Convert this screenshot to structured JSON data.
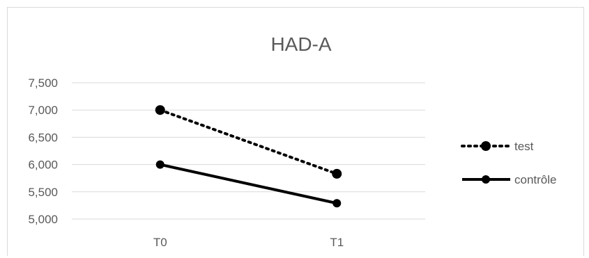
{
  "chart_data": {
    "type": "line",
    "title": "HAD-A",
    "categories": [
      "T0",
      "T1"
    ],
    "ylim": [
      5000,
      7500
    ],
    "yticks": [
      "5,000",
      "5,500",
      "6,000",
      "6,500",
      "7,000",
      "7,500"
    ],
    "grid": true,
    "legend_position": "right",
    "series": [
      {
        "name": "test",
        "values": [
          7000,
          5830
        ],
        "style": "dotted",
        "color": "#000000"
      },
      {
        "name": "contrôle",
        "values": [
          6000,
          5290
        ],
        "style": "solid",
        "color": "#000000"
      }
    ]
  }
}
